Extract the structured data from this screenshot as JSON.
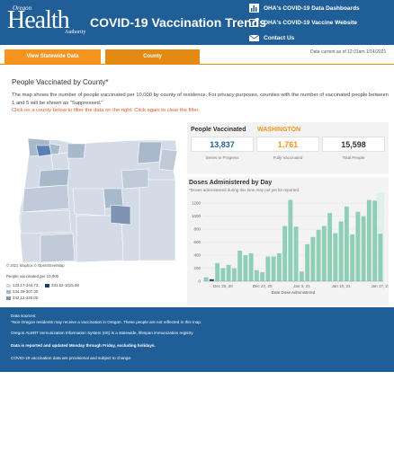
{
  "header": {
    "logo_oregon": "Oregon",
    "logo_health": "Health",
    "logo_authority": "Authority",
    "title": "COVID-19 Vaccination Trends",
    "links": [
      {
        "label": "OHA's COVID-19 Data Dashboards",
        "icon": "bar-chart-icon"
      },
      {
        "label": "OHA's COVID-19 Vaccine Website",
        "icon": "external-link-icon"
      },
      {
        "label": "Contact Us",
        "icon": "envelope-icon"
      }
    ]
  },
  "tabs": [
    {
      "label": "View Statewide Data",
      "active": false
    },
    {
      "label": "County",
      "active": true
    }
  ],
  "as_of": "Data current as of 12:01am 1/14/2021",
  "section_title": "People Vaccinated by County*",
  "description": "The map shows the number of people vaccinated per 10,000 by county of residence. For privacy purposes, counties with the number of vaccinated people between 1 and 5 will be shown as \"Suppressed.\"",
  "hint": "Click on a county below to filter the data on the right. Click again to clear the filter.",
  "map": {
    "credit": "© 2021 Mapbox © OpenStreetMap",
    "legend_title": "People vaccinated per 10,000",
    "legend": [
      {
        "label": "123.17-244.72",
        "color": "#d3dce6"
      },
      {
        "label": "234.29-307.30",
        "color": "#a9b9cc"
      },
      {
        "label": "242.12-320.00",
        "color": "#7d95b3"
      },
      {
        "label": "331.52-1015.38",
        "color": "#1f3b6b"
      }
    ],
    "selected_color": "#5a7fb5"
  },
  "stats": {
    "label": "People Vaccinated",
    "county": "WASHINGTON",
    "cards": [
      {
        "value": "13,837",
        "caption": "Series In Progress",
        "color": "#1f5e96"
      },
      {
        "value": "1,761",
        "caption": "Fully Vaccinated",
        "color": "#f7941d"
      },
      {
        "value": "15,598",
        "caption": "Total People",
        "color": "#333333"
      }
    ]
  },
  "chart": {
    "title": "Doses Administered by Day",
    "subtitle": "*Doses administered during this time may not yet be reported.",
    "xlabel": "Date Dose Administered"
  },
  "chart_data": {
    "type": "bar",
    "title": "Doses Administered by Day",
    "xlabel": "Date Dose Administered",
    "ylabel": "",
    "ylim": [
      0,
      1300
    ],
    "yticks": [
      0,
      200,
      400,
      600,
      800,
      1000,
      1200
    ],
    "xtick_labels": [
      "Dec 20, 20",
      "Dec 27, 20",
      "Jan 3, 21",
      "Jan 10, 21",
      "Jan 17, 21"
    ],
    "xtick_positions": [
      3,
      10,
      17,
      24,
      31
    ],
    "values": [
      60,
      30,
      280,
      200,
      250,
      200,
      470,
      400,
      430,
      170,
      140,
      380,
      380,
      430,
      850,
      1250,
      840,
      150,
      570,
      680,
      790,
      850,
      1050,
      740,
      920,
      1150,
      720,
      1070,
      1000,
      1250,
      1240,
      730
    ],
    "highlight_index": 31,
    "bar_color": "#8fcfb7",
    "dark_bar_color": "#1f3b6b",
    "dark_bar_index": 1
  },
  "footer": {
    "lines": [
      {
        "text": "Data sources:",
        "bold": false
      },
      {
        "text": "*Non-Oregon residents may receive a vaccination in Oregon. These people are not reflected in this map.",
        "bold": false
      },
      {
        "text": "Oregon ALERT Immunization Information System (IIS) is a statewide, lifespan immunization registry.",
        "bold": false
      },
      {
        "text": "Data is reported and updated Monday through Friday, excluding holidays.",
        "bold": true
      },
      {
        "text": "COVID-19 vaccination data are provisional and subject to change.",
        "bold": false
      }
    ]
  }
}
